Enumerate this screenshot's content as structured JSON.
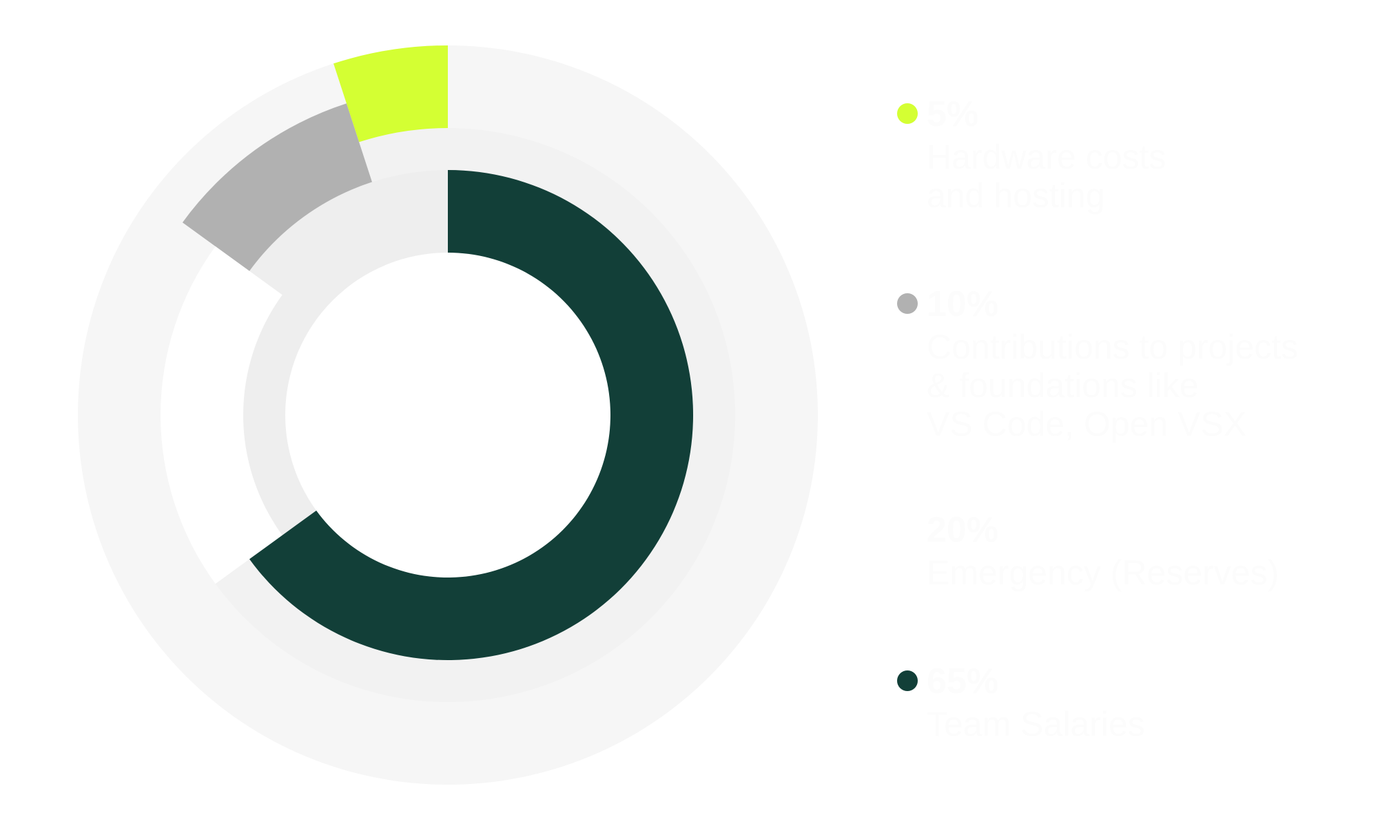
{
  "chart_data": {
    "type": "pie",
    "variant": "offset-ring donut",
    "start_angle": "top, clockwise",
    "slices": [
      {
        "value": 5,
        "label_value": "5%",
        "label": "Hardware costs\nand hosting",
        "color": "#d4ff33"
      },
      {
        "value": 10,
        "label_value": "10%",
        "label": "Contributions to projects\n& foundations like\nVS Code, Open VSX",
        "color": "#b1b1b1"
      },
      {
        "value": 20,
        "label_value": "20%",
        "label": "Emergency (Reserves)",
        "color": "#ffffff"
      },
      {
        "value": 65,
        "label_value": "65%",
        "label": "Team Salaries",
        "color": "#123f38"
      }
    ],
    "text_color": "#fcfcfc",
    "legend_placement": "right"
  }
}
